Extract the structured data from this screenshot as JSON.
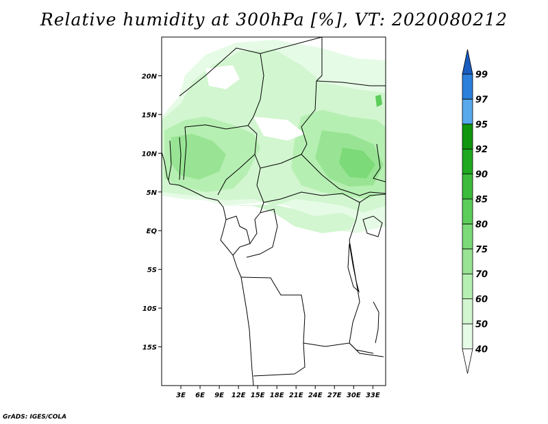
{
  "title": "Relative humidity at 300hPa [%], VT: 2020080212",
  "credit": "GrADS: IGES/COLA",
  "map": {
    "lat_range": [
      -20,
      25
    ],
    "lon_range": [
      0,
      35
    ],
    "lat_ticks": [
      {
        "value": 20,
        "label": "20N"
      },
      {
        "value": 15,
        "label": "15N"
      },
      {
        "value": 10,
        "label": "10N"
      },
      {
        "value": 5,
        "label": "5N"
      },
      {
        "value": 0,
        "label": "EQ"
      },
      {
        "value": -5,
        "label": "5S"
      },
      {
        "value": -10,
        "label": "10S"
      },
      {
        "value": -15,
        "label": "15S"
      }
    ],
    "lon_ticks": [
      {
        "value": 3,
        "label": "3E"
      },
      {
        "value": 6,
        "label": "6E"
      },
      {
        "value": 9,
        "label": "9E"
      },
      {
        "value": 12,
        "label": "12E"
      },
      {
        "value": 15,
        "label": "15E"
      },
      {
        "value": 18,
        "label": "18E"
      },
      {
        "value": 21,
        "label": "21E"
      },
      {
        "value": 24,
        "label": "24E"
      },
      {
        "value": 27,
        "label": "27E"
      },
      {
        "value": 30,
        "label": "30E"
      },
      {
        "value": 33,
        "label": "33E"
      }
    ]
  },
  "colorbar": {
    "levels": [
      {
        "label": "40",
        "color": "#e6fbe6"
      },
      {
        "label": "50",
        "color": "#d2f6d0"
      },
      {
        "label": "60",
        "color": "#b6efb2"
      },
      {
        "label": "70",
        "color": "#98e494"
      },
      {
        "label": "75",
        "color": "#7cda78"
      },
      {
        "label": "80",
        "color": "#5ccd5a"
      },
      {
        "label": "85",
        "color": "#3cbb3c"
      },
      {
        "label": "90",
        "color": "#20a820"
      },
      {
        "label": "92",
        "color": "#109610"
      },
      {
        "label": "95",
        "color": "#58a8ec"
      },
      {
        "label": "97",
        "color": "#2c80dc"
      },
      {
        "label": "99",
        "color": "#1a5cc0"
      }
    ]
  }
}
